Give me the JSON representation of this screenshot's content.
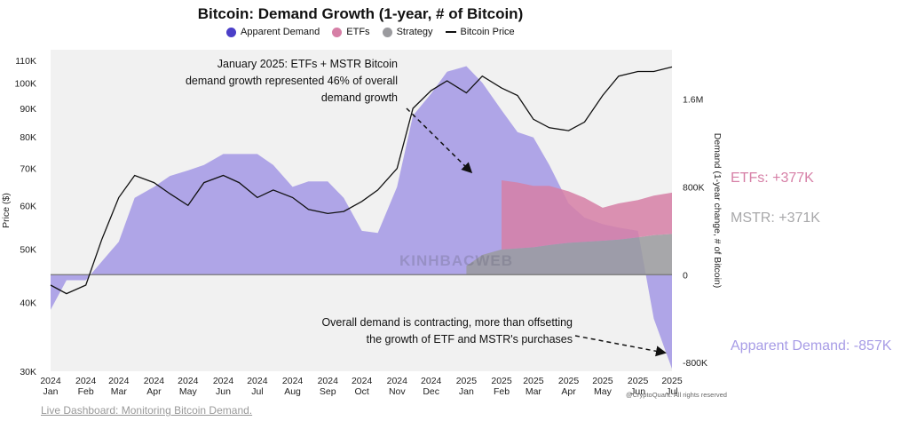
{
  "colors": {
    "apparent_demand": "#4b3fc8",
    "apparent_demand_fill": "#a79ce6",
    "etfs": "#d67fa6",
    "strategy": "#9a9a9e",
    "price": "#111111",
    "plot_bg": "#f1f1f1"
  },
  "footer": {
    "link_text": "Live Dashboard: Monitoring Bitcoin Demand.",
    "credit": "@CryptoQuant. All rights reserved"
  },
  "watermark": "KINHBACWEB",
  "chart_data": {
    "type": "area",
    "title": "Bitcoin: Demand Growth (1-year, # of Bitcoin)",
    "ylabel": "Price ($)",
    "y2label": "Demand (1-year change, # of Bitcoin)",
    "legend": [
      "Apparent Demand",
      "ETFs",
      "Strategy",
      "Bitcoin Price"
    ],
    "legend_placement": "top",
    "grid": false,
    "y_scale": "log",
    "ylim": [
      30000,
      115000
    ],
    "y2lim": [
      -880000,
      2050000
    ],
    "y_ticks": [
      "30K",
      "40K",
      "50K",
      "60K",
      "70K",
      "80K",
      "90K",
      "100K",
      "110K"
    ],
    "y2_ticks": [
      "-800K",
      "0",
      "800K",
      "1.6M"
    ],
    "x_ticks": [
      {
        "label": "2024\nJan"
      },
      {
        "label": "2024\nFeb"
      },
      {
        "label": "2024\nMar"
      },
      {
        "label": "2024\nApr"
      },
      {
        "label": "2024\nMay"
      },
      {
        "label": "2024\nJun"
      },
      {
        "label": "2024\nJul"
      },
      {
        "label": "2024\nAug"
      },
      {
        "label": "2024\nSep"
      },
      {
        "label": "2024\nOct"
      },
      {
        "label": "2024\nNov"
      },
      {
        "label": "2024\nDec"
      },
      {
        "label": "2025\nJan"
      },
      {
        "label": "2025\nFeb"
      },
      {
        "label": "2025\nMar"
      },
      {
        "label": "2025\nApr"
      },
      {
        "label": "2025\nMay"
      },
      {
        "label": "2025\nJun"
      },
      {
        "label": "2025\nJul"
      }
    ],
    "x": [
      "2024-01-01",
      "2024-01-15",
      "2024-02-01",
      "2024-02-15",
      "2024-03-01",
      "2024-03-15",
      "2024-04-01",
      "2024-04-15",
      "2024-05-01",
      "2024-05-15",
      "2024-06-01",
      "2024-06-15",
      "2024-07-01",
      "2024-07-15",
      "2024-08-01",
      "2024-08-15",
      "2024-09-01",
      "2024-09-15",
      "2024-10-01",
      "2024-10-15",
      "2024-11-01",
      "2024-11-15",
      "2024-12-01",
      "2024-12-15",
      "2025-01-01",
      "2025-01-15",
      "2025-02-01",
      "2025-02-15",
      "2025-03-01",
      "2025-03-15",
      "2025-04-01",
      "2025-04-15",
      "2025-05-01",
      "2025-05-15",
      "2025-06-01",
      "2025-06-15",
      "2025-07-01"
    ],
    "series": [
      {
        "name": "Bitcoin Price",
        "values": [
          43000,
          41500,
          43000,
          52000,
          62000,
          68000,
          66000,
          63000,
          60000,
          66000,
          68000,
          66000,
          62000,
          64000,
          62000,
          59000,
          58000,
          58500,
          61000,
          64000,
          70000,
          90000,
          97000,
          101000,
          96000,
          103000,
          98000,
          95000,
          86000,
          83000,
          82000,
          85000,
          95000,
          103000,
          105000,
          105000,
          107000
        ]
      },
      {
        "name": "Apparent Demand",
        "values": [
          -320000,
          -50000,
          -50000,
          120000,
          300000,
          700000,
          800000,
          900000,
          950000,
          1000000,
          1100000,
          1100000,
          1100000,
          1000000,
          800000,
          850000,
          850000,
          700000,
          400000,
          380000,
          800000,
          1450000,
          1650000,
          1850000,
          1900000,
          1750000,
          1500000,
          1300000,
          1250000,
          1000000,
          650000,
          520000,
          460000,
          430000,
          400000,
          -400000,
          -857000
        ]
      },
      {
        "name": "ETFs",
        "values": [
          0,
          0,
          0,
          0,
          0,
          0,
          0,
          0,
          0,
          0,
          0,
          0,
          0,
          0,
          0,
          0,
          0,
          0,
          0,
          0,
          0,
          0,
          0,
          0,
          0,
          0,
          630000,
          600000,
          560000,
          540000,
          470000,
          400000,
          300000,
          330000,
          340000,
          360000,
          377000
        ]
      },
      {
        "name": "Strategy",
        "values": [
          0,
          0,
          0,
          0,
          0,
          0,
          0,
          0,
          0,
          0,
          0,
          0,
          0,
          0,
          0,
          0,
          0,
          0,
          0,
          0,
          0,
          0,
          0,
          0,
          80000,
          180000,
          230000,
          240000,
          250000,
          270000,
          290000,
          300000,
          310000,
          320000,
          340000,
          360000,
          371000
        ]
      }
    ],
    "annotations": [
      {
        "text": [
          "January  2025: ETFs + MSTR Bitcoin",
          "demand growth represented 46% of overall",
          "demand growth"
        ]
      },
      {
        "text": [
          "Overall demand is contracting, more than offsetting",
          "the growth of ETF and MSTR's purchases"
        ]
      }
    ],
    "side_labels": [
      {
        "text": "ETFs: +377K"
      },
      {
        "text": "MSTR: +371K"
      },
      {
        "text": "Apparent Demand: -857K"
      }
    ]
  }
}
